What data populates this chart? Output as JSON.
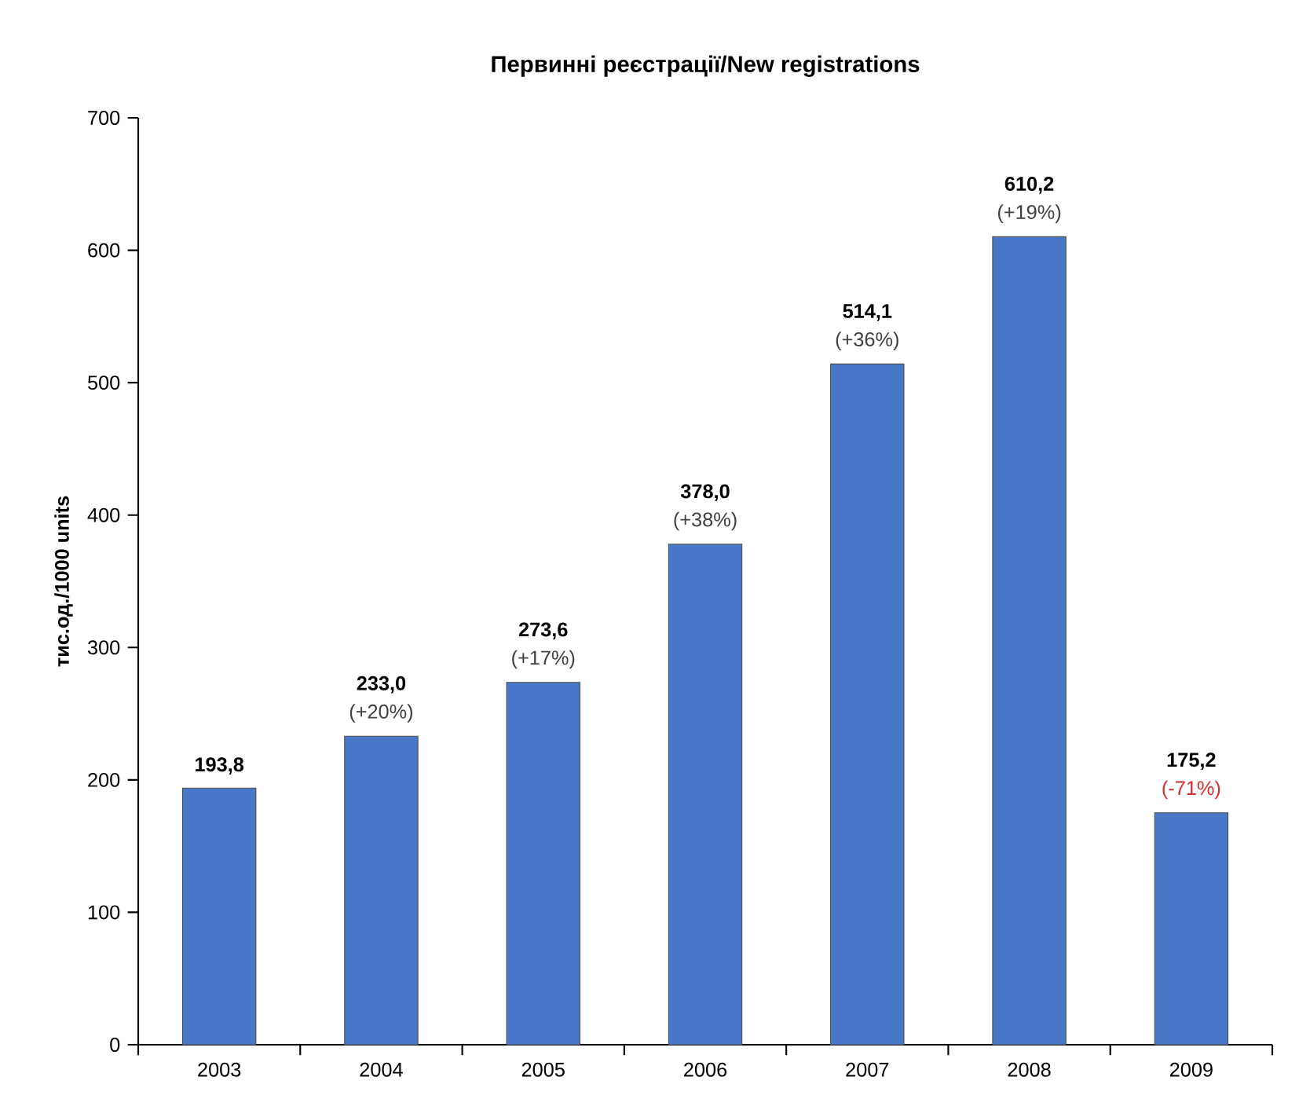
{
  "chart_data": {
    "type": "bar",
    "title": "Первинні реєстрації/New registrations",
    "ylabel": "тис.од./1000 units",
    "categories": [
      "2003",
      "2004",
      "2005",
      "2006",
      "2007",
      "2008",
      "2009"
    ],
    "values": [
      193.8,
      233.0,
      273.6,
      378.0,
      514.1,
      610.2,
      175.2
    ],
    "value_labels": [
      "193,8",
      "233,0",
      "273,6",
      "378,0",
      "514,1",
      "610,2",
      "175,2"
    ],
    "color": "#4a78c8",
    "ylim": [
      0,
      700
    ],
    "yticks": [
      0,
      100,
      200,
      300,
      400,
      500,
      600,
      700
    ],
    "grid": false,
    "annotations": [
      {
        "text": "(+20%)",
        "x": "2004",
        "y": 233.0
      },
      {
        "text": "(+17%)",
        "x": "2005",
        "y": 273.6
      },
      {
        "text": "(+38%)",
        "x": "2006",
        "y": 378.0
      },
      {
        "text": "(+36%)",
        "x": "2007",
        "y": 514.1
      },
      {
        "text": "(+19%)",
        "x": "2008",
        "y": 610.2
      },
      {
        "text": "(-71%)",
        "x": "2009",
        "y": 175.2
      }
    ]
  }
}
